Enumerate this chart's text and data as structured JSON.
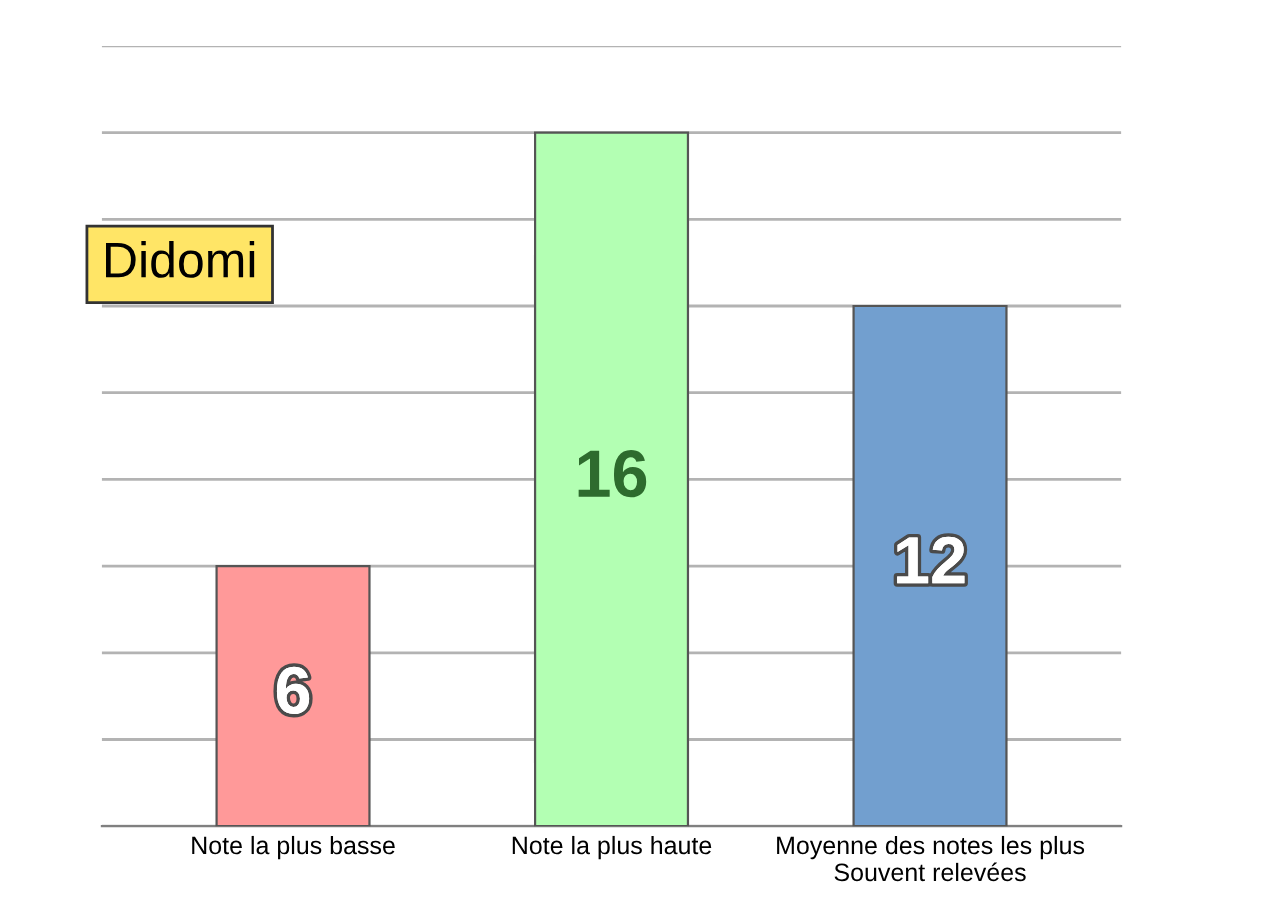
{
  "chart_data": {
    "type": "bar",
    "title": "Didomi",
    "categories": [
      "Note la plus basse",
      "Note la plus haute",
      "Moyenne des notes les plus\nSouvent relevées"
    ],
    "values": [
      6,
      16,
      12
    ],
    "colors": [
      "#ff9999",
      "#b3ffb3",
      "#729fcf"
    ],
    "data_labels": true,
    "ylim": [
      0,
      18
    ],
    "yticks": [
      {
        "value": 0,
        "label": null
      },
      {
        "value": 2,
        "label": null
      },
      {
        "value": 4,
        "label": null
      },
      {
        "value": 6,
        "label": null
      },
      {
        "value": 8,
        "label": null
      },
      {
        "value": 10,
        "label": null
      },
      {
        "value": 12,
        "label": null
      },
      {
        "value": 14,
        "label": null
      },
      {
        "value": 16,
        "label": null
      },
      {
        "value": 18,
        "label": null
      }
    ],
    "grid": "y",
    "tick_labels": "x"
  }
}
